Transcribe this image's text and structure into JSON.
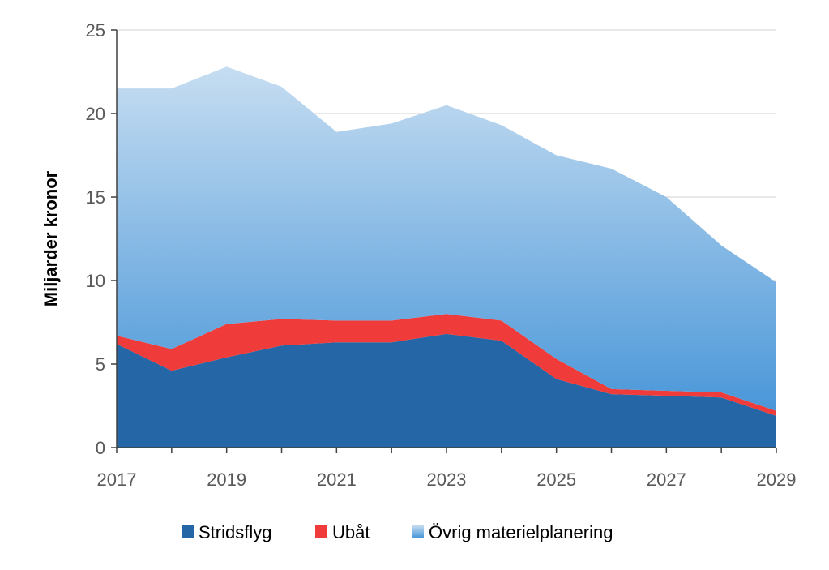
{
  "chart_data": {
    "type": "area",
    "stacked": true,
    "title": "",
    "xlabel": "",
    "ylabel": "Miljarder kronor",
    "ylim": [
      0,
      25
    ],
    "yticks": [
      0,
      5,
      10,
      15,
      20,
      25
    ],
    "xlim": [
      2017,
      2029
    ],
    "xtick_labels": [
      "2017",
      "2019",
      "2021",
      "2023",
      "2025",
      "2027",
      "2029"
    ],
    "grid": true,
    "legend_position": "bottom",
    "x": [
      2017,
      2018,
      2019,
      2020,
      2021,
      2022,
      2023,
      2024,
      2025,
      2026,
      2027,
      2028,
      2029
    ],
    "series": [
      {
        "name": "Stridsflyg",
        "color": "#2566A6",
        "values": [
          6.2,
          4.6,
          5.4,
          6.1,
          6.3,
          6.3,
          6.8,
          6.4,
          4.1,
          3.2,
          3.1,
          3.0,
          1.9
        ]
      },
      {
        "name": "Ubåt",
        "color": "#EF3B39",
        "values": [
          0.5,
          1.3,
          2.0,
          1.6,
          1.3,
          1.3,
          1.2,
          1.2,
          1.2,
          0.3,
          0.3,
          0.3,
          0.3
        ]
      },
      {
        "name": "Övrig materielplanering",
        "color_top": "#C6DDF1",
        "color_bottom": "#4A97D9",
        "values": [
          14.8,
          15.6,
          15.4,
          13.9,
          11.3,
          11.8,
          12.5,
          11.7,
          12.2,
          13.2,
          11.6,
          8.8,
          7.7
        ]
      }
    ]
  }
}
